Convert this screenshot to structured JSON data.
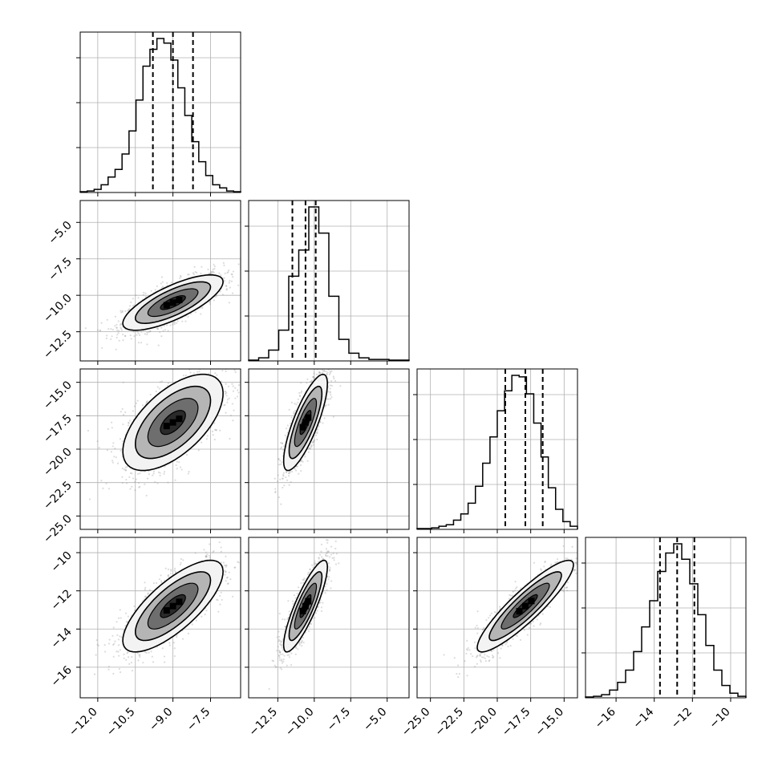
{
  "chart_data": {
    "type": "corner",
    "description_free": true,
    "parameters": [
      {
        "range": [
          -12.7,
          -6.3
        ],
        "ticks": [
          -12.0,
          -10.5,
          -9.0,
          -7.5
        ],
        "tick_labels": [
          "−12.0",
          "−10.5",
          "−9.0",
          "−7.5"
        ],
        "hist_ticks": [
          0,
          1,
          2,
          3
        ],
        "quantiles": [
          -9.8,
          -9.0,
          -8.2
        ],
        "hist": [
          0.005,
          0.01,
          0.02,
          0.05,
          0.1,
          0.15,
          0.25,
          0.4,
          0.6,
          0.82,
          0.93,
          1.0,
          0.97,
          0.86,
          0.68,
          0.5,
          0.33,
          0.2,
          0.11,
          0.05,
          0.03,
          0.01,
          0.005
        ]
      },
      {
        "range": [
          -14.5,
          -3.5
        ],
        "ticks": [
          -12.5,
          -10.0,
          -7.5,
          -5.0
        ],
        "tick_labels": [
          "−12.5",
          "−10.0",
          "−7.5",
          "−5.0"
        ],
        "hist_ticks": [
          0,
          1,
          2,
          3
        ],
        "quantiles": [
          -11.5,
          -10.6,
          -9.9
        ],
        "hist": [
          0.005,
          0.02,
          0.07,
          0.2,
          0.55,
          0.72,
          1.0,
          0.83,
          0.42,
          0.14,
          0.05,
          0.02,
          0.01,
          0.01,
          0.005,
          0.005
        ]
      },
      {
        "range": [
          -26.0,
          -14.0
        ],
        "ticks": [
          -25.0,
          -22.5,
          -20.0,
          -17.5,
          -15.0
        ],
        "tick_labels": [
          "−25.0",
          "−22.5",
          "−20.0",
          "−17.5",
          "−15.0"
        ],
        "hist_ticks": [
          0,
          1,
          2,
          3
        ],
        "quantiles": [
          -19.4,
          -17.9,
          -16.6
        ],
        "hist": [
          0.005,
          0.005,
          0.01,
          0.02,
          0.03,
          0.06,
          0.1,
          0.17,
          0.28,
          0.43,
          0.6,
          0.77,
          0.9,
          1.0,
          0.99,
          0.88,
          0.69,
          0.47,
          0.27,
          0.13,
          0.05,
          0.02
        ]
      },
      {
        "range": [
          -17.6,
          -9.2
        ],
        "ticks": [
          -16,
          -14,
          -12,
          -10
        ],
        "tick_labels": [
          "−16",
          "−14",
          "−12",
          "−10"
        ],
        "hist_ticks": [
          0,
          1,
          2,
          3
        ],
        "quantiles": [
          -13.7,
          -12.8,
          -11.9
        ],
        "hist": [
          0.005,
          0.01,
          0.02,
          0.05,
          0.1,
          0.18,
          0.3,
          0.46,
          0.63,
          0.82,
          0.94,
          1.0,
          0.9,
          0.74,
          0.54,
          0.34,
          0.18,
          0.08,
          0.03,
          0.01
        ]
      }
    ],
    "pairs": [
      {
        "x": 0,
        "y": 1,
        "mean": [
          -9.0,
          -10.5
        ],
        "sd": [
          1.0,
          0.95
        ],
        "rho": 0.75
      },
      {
        "x": 0,
        "y": 2,
        "mean": [
          -9.0,
          -18.0
        ],
        "sd": [
          1.0,
          1.8
        ],
        "rho": 0.6
      },
      {
        "x": 1,
        "y": 2,
        "mean": [
          -10.6,
          -18.0
        ],
        "sd": [
          0.75,
          1.8
        ],
        "rho": 0.8
      },
      {
        "x": 0,
        "y": 3,
        "mean": [
          -9.0,
          -12.8
        ],
        "sd": [
          1.0,
          1.2
        ],
        "rho": 0.75
      },
      {
        "x": 1,
        "y": 3,
        "mean": [
          -10.6,
          -12.8
        ],
        "sd": [
          0.75,
          1.2
        ],
        "rho": 0.85
      },
      {
        "x": 2,
        "y": 3,
        "mean": [
          -17.9,
          -12.8
        ],
        "sd": [
          1.8,
          1.2
        ],
        "rho": 0.9
      }
    ],
    "y_label_ticks": {
      "1": {
        "ticks": [
          -5.0,
          -7.5,
          -10.0,
          -12.5
        ],
        "tick_labels": [
          "−5.0",
          "−7.5",
          "−10.0",
          "−12.5"
        ]
      },
      "2": {
        "ticks": [
          -15.0,
          -17.5,
          -20.0,
          -22.5,
          -25.0
        ],
        "tick_labels": [
          "−15.0",
          "−17.5",
          "−20.0",
          "−22.5",
          "−25.0"
        ]
      },
      "3": {
        "ticks": [
          -10,
          -12,
          -14,
          -16
        ],
        "tick_labels": [
          "−10",
          "−12",
          "−14",
          "−16"
        ]
      }
    },
    "contour_levels": [
      0.5,
      1.0,
      1.5,
      2.0
    ],
    "grid": true,
    "colors": {
      "line": "#000000",
      "points": "#9a9a9a",
      "background": "#ffffff",
      "grid": "#b0b0b0"
    }
  }
}
